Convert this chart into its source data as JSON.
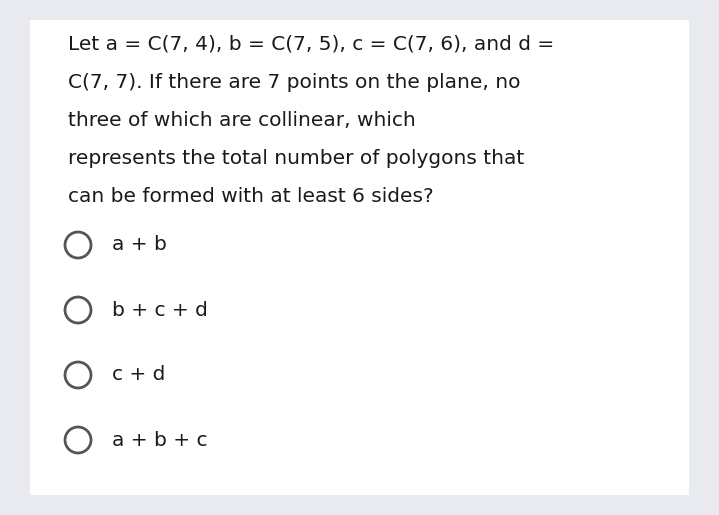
{
  "background_color": "#e8eaf0",
  "content_bg": "#ffffff",
  "question_lines": [
    "Let a = C(7, 4), b = C(7, 5), c = C(7, 6), and d =",
    "C(7, 7). If there are 7 points on the plane, no",
    "three of which are collinear, which",
    "represents the total number of polygons that",
    "can be formed with at least 6 sides?"
  ],
  "choices": [
    "a + b",
    "b + c + d",
    "c + d",
    "a + b + c"
  ],
  "text_color": "#1a1a1a",
  "circle_color": "#555555",
  "font_size_question": 14.5,
  "font_size_choices": 14.5,
  "figsize": [
    7.19,
    5.15
  ],
  "dpi": 100
}
